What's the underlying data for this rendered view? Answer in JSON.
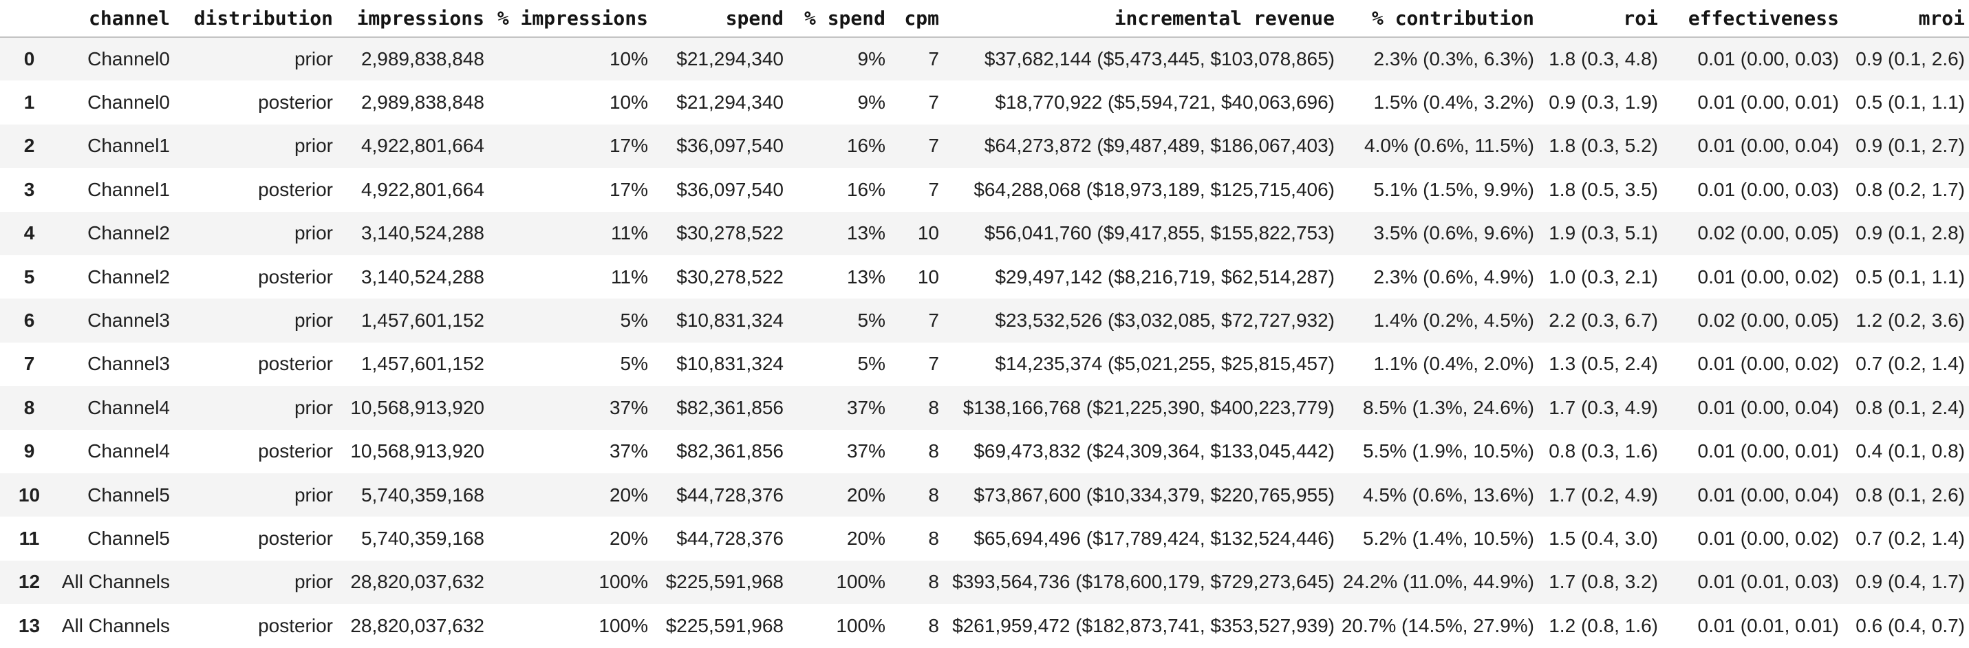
{
  "theme": {
    "stripe_color": "#f4f4f4",
    "row_alt_color": "#ffffff",
    "header_border_color": "#c3c3c3",
    "text_color": "#202020",
    "header_text_color": "#141414",
    "background_color": "#ffffff"
  },
  "table": {
    "column_keys": [
      "row-index",
      "channel",
      "distribution",
      "impressions",
      "pct-impressions",
      "spend",
      "pct-spend",
      "cpm",
      "incremental-revenue",
      "pct-contribution",
      "roi",
      "effectiveness",
      "mroi"
    ],
    "columns": [
      "",
      "channel",
      "distribution",
      "impressions",
      "% impressions",
      "spend",
      "% spend",
      "cpm",
      "incremental revenue",
      "% contribution",
      "roi",
      "effectiveness",
      "mroi"
    ],
    "rows": [
      [
        "0",
        "Channel0",
        "prior",
        "2,989,838,848",
        "10%",
        "$21,294,340",
        "9%",
        "7",
        "$37,682,144 ($5,473,445, $103,078,865)",
        "2.3% (0.3%, 6.3%)",
        "1.8 (0.3, 4.8)",
        "0.01 (0.00, 0.03)",
        "0.9 (0.1, 2.6)"
      ],
      [
        "1",
        "Channel0",
        "posterior",
        "2,989,838,848",
        "10%",
        "$21,294,340",
        "9%",
        "7",
        "$18,770,922 ($5,594,721, $40,063,696)",
        "1.5% (0.4%, 3.2%)",
        "0.9 (0.3, 1.9)",
        "0.01 (0.00, 0.01)",
        "0.5 (0.1, 1.1)"
      ],
      [
        "2",
        "Channel1",
        "prior",
        "4,922,801,664",
        "17%",
        "$36,097,540",
        "16%",
        "7",
        "$64,273,872 ($9,487,489, $186,067,403)",
        "4.0% (0.6%, 11.5%)",
        "1.8 (0.3, 5.2)",
        "0.01 (0.00, 0.04)",
        "0.9 (0.1, 2.7)"
      ],
      [
        "3",
        "Channel1",
        "posterior",
        "4,922,801,664",
        "17%",
        "$36,097,540",
        "16%",
        "7",
        "$64,288,068 ($18,973,189, $125,715,406)",
        "5.1% (1.5%, 9.9%)",
        "1.8 (0.5, 3.5)",
        "0.01 (0.00, 0.03)",
        "0.8 (0.2, 1.7)"
      ],
      [
        "4",
        "Channel2",
        "prior",
        "3,140,524,288",
        "11%",
        "$30,278,522",
        "13%",
        "10",
        "$56,041,760 ($9,417,855, $155,822,753)",
        "3.5% (0.6%, 9.6%)",
        "1.9 (0.3, 5.1)",
        "0.02 (0.00, 0.05)",
        "0.9 (0.1, 2.8)"
      ],
      [
        "5",
        "Channel2",
        "posterior",
        "3,140,524,288",
        "11%",
        "$30,278,522",
        "13%",
        "10",
        "$29,497,142 ($8,216,719, $62,514,287)",
        "2.3% (0.6%, 4.9%)",
        "1.0 (0.3, 2.1)",
        "0.01 (0.00, 0.02)",
        "0.5 (0.1, 1.1)"
      ],
      [
        "6",
        "Channel3",
        "prior",
        "1,457,601,152",
        "5%",
        "$10,831,324",
        "5%",
        "7",
        "$23,532,526 ($3,032,085, $72,727,932)",
        "1.4% (0.2%, 4.5%)",
        "2.2 (0.3, 6.7)",
        "0.02 (0.00, 0.05)",
        "1.2 (0.2, 3.6)"
      ],
      [
        "7",
        "Channel3",
        "posterior",
        "1,457,601,152",
        "5%",
        "$10,831,324",
        "5%",
        "7",
        "$14,235,374 ($5,021,255, $25,815,457)",
        "1.1% (0.4%, 2.0%)",
        "1.3 (0.5, 2.4)",
        "0.01 (0.00, 0.02)",
        "0.7 (0.2, 1.4)"
      ],
      [
        "8",
        "Channel4",
        "prior",
        "10,568,913,920",
        "37%",
        "$82,361,856",
        "37%",
        "8",
        "$138,166,768 ($21,225,390, $400,223,779)",
        "8.5% (1.3%, 24.6%)",
        "1.7 (0.3, 4.9)",
        "0.01 (0.00, 0.04)",
        "0.8 (0.1, 2.4)"
      ],
      [
        "9",
        "Channel4",
        "posterior",
        "10,568,913,920",
        "37%",
        "$82,361,856",
        "37%",
        "8",
        "$69,473,832 ($24,309,364, $133,045,442)",
        "5.5% (1.9%, 10.5%)",
        "0.8 (0.3, 1.6)",
        "0.01 (0.00, 0.01)",
        "0.4 (0.1, 0.8)"
      ],
      [
        "10",
        "Channel5",
        "prior",
        "5,740,359,168",
        "20%",
        "$44,728,376",
        "20%",
        "8",
        "$73,867,600 ($10,334,379, $220,765,955)",
        "4.5% (0.6%, 13.6%)",
        "1.7 (0.2, 4.9)",
        "0.01 (0.00, 0.04)",
        "0.8 (0.1, 2.6)"
      ],
      [
        "11",
        "Channel5",
        "posterior",
        "5,740,359,168",
        "20%",
        "$44,728,376",
        "20%",
        "8",
        "$65,694,496 ($17,789,424, $132,524,446)",
        "5.2% (1.4%, 10.5%)",
        "1.5 (0.4, 3.0)",
        "0.01 (0.00, 0.02)",
        "0.7 (0.2, 1.4)"
      ],
      [
        "12",
        "All Channels",
        "prior",
        "28,820,037,632",
        "100%",
        "$225,591,968",
        "100%",
        "8",
        "$393,564,736 ($178,600,179, $729,273,645)",
        "24.2% (11.0%, 44.9%)",
        "1.7 (0.8, 3.2)",
        "0.01 (0.01, 0.03)",
        "0.9 (0.4, 1.7)"
      ],
      [
        "13",
        "All Channels",
        "posterior",
        "28,820,037,632",
        "100%",
        "$225,591,968",
        "100%",
        "8",
        "$261,959,472 ($182,873,741, $353,527,939)",
        "20.7% (14.5%, 27.9%)",
        "1.2 (0.8, 1.6)",
        "0.01 (0.01, 0.01)",
        "0.6 (0.4, 0.7)"
      ]
    ]
  }
}
